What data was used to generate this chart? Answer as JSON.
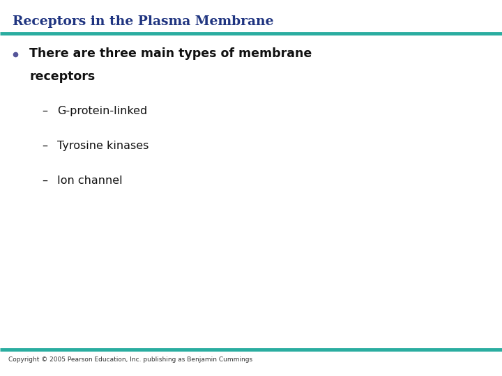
{
  "title": "Receptors in the Plasma Membrane",
  "title_color": "#1F3480",
  "title_fontsize": 13.5,
  "title_fontweight": "bold",
  "title_fontstyle": "normal",
  "divider_color": "#2AADA0",
  "divider_thickness": 3.5,
  "background_color": "#FFFFFF",
  "bullet_line1": "There are three main types of membrane",
  "bullet_line2": "receptors",
  "bullet_color": "#111111",
  "bullet_dot_color": "#555599",
  "bullet_fontsize": 12.5,
  "bullet_fontweight": "bold",
  "sub_items": [
    "G-protein-linked",
    "Tyrosine kinases",
    "Ion channel"
  ],
  "sub_color": "#111111",
  "sub_fontsize": 11.5,
  "copyright_text": "Copyright © 2005 Pearson Education, Inc. publishing as Benjamin Cummings",
  "copyright_fontsize": 6.5,
  "copyright_color": "#333333"
}
